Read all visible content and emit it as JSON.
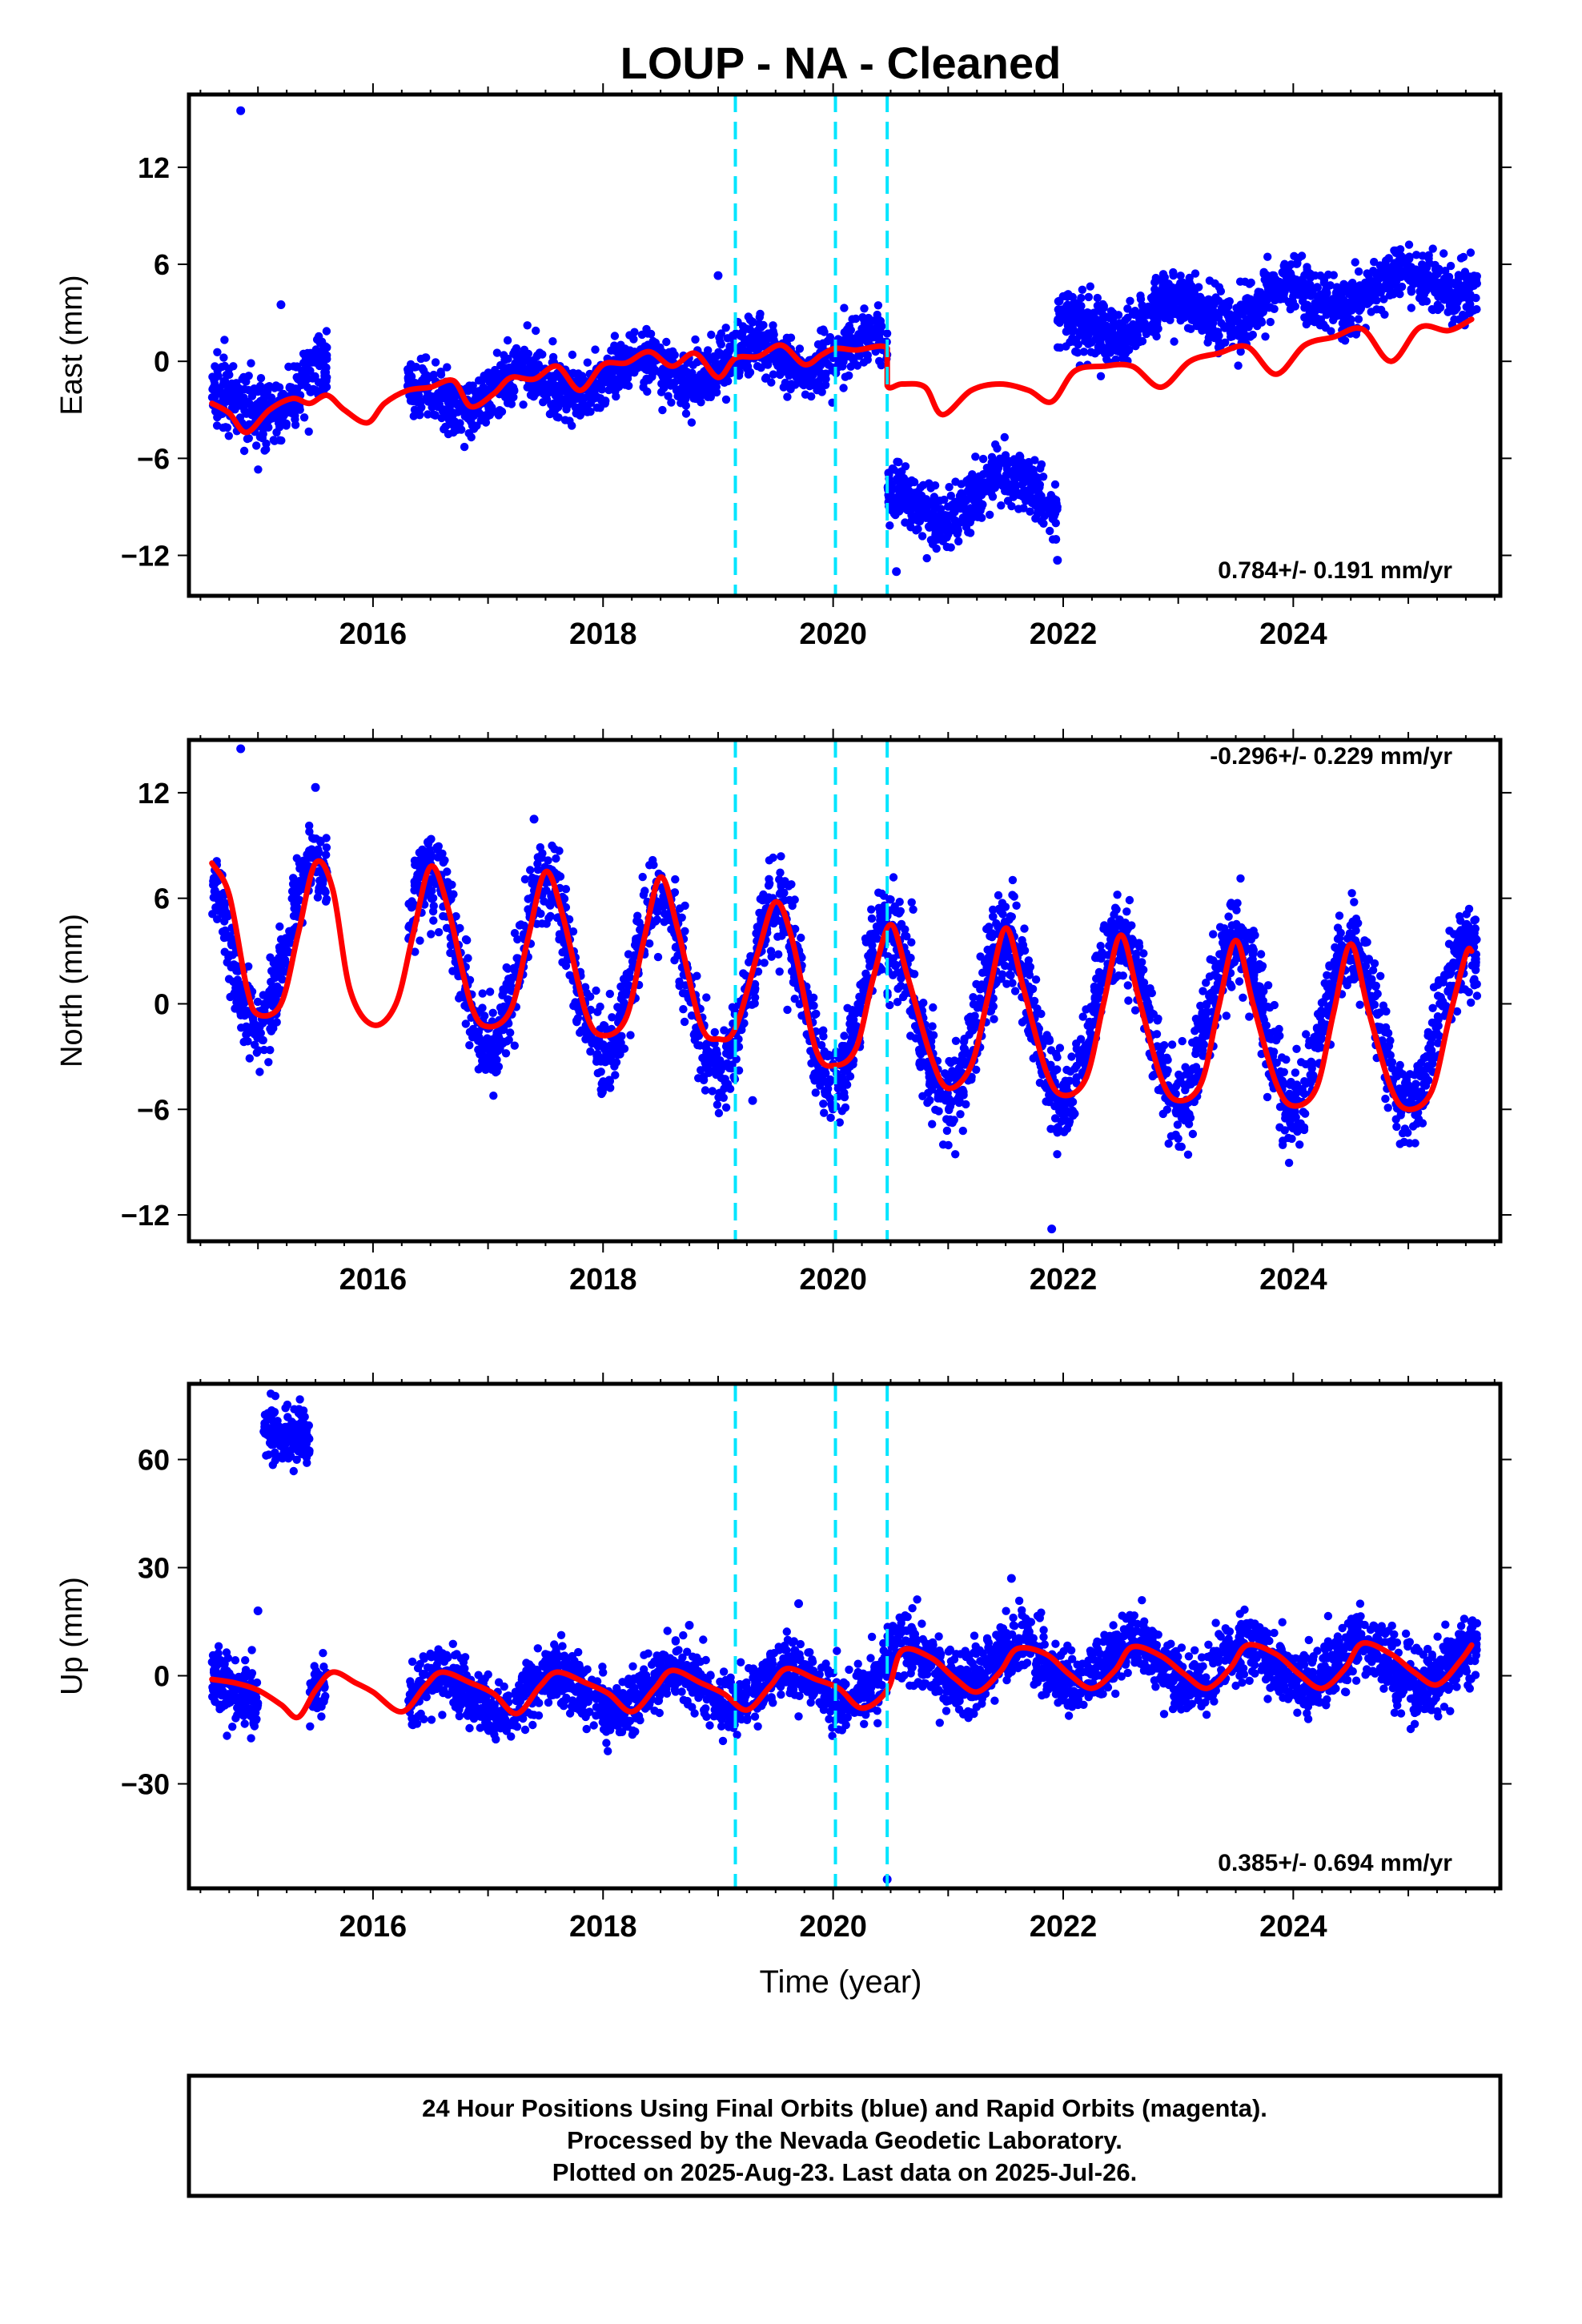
{
  "title": "LOUP  - NA - Cleaned",
  "xlabel": "Time (year)",
  "footer": [
    "24 Hour Positions Using Final Orbits (blue) and Rapid Orbits (magenta).",
    "Processed by the Nevada Geodetic Laboratory.",
    "Plotted on 2025-Aug-23. Last data on 2025-Jul-26."
  ],
  "colors": {
    "data": "#0000ff",
    "model": "#ff0000",
    "events": "#00e5ff",
    "frame": "#000000"
  },
  "chart_data": [
    {
      "type": "scatter",
      "name": "east",
      "ylabel": "East (mm)",
      "rate_text": "0.784+/- 0.191 mm/yr",
      "rate_position": "bottom-right",
      "xlim": [
        2014.4,
        2025.8
      ],
      "ylim": [
        -14.5,
        16.5
      ],
      "yticks": [
        12,
        6,
        0,
        -6,
        -12
      ],
      "xticks": [
        2016,
        2018,
        2020,
        2022,
        2024
      ],
      "event_lines": [
        2019.15,
        2020.02,
        2020.47
      ],
      "series": [
        {
          "name": "Final Orbits",
          "kind": "points",
          "segments": [
            {
              "x": [
                2014.6,
                2015.6
              ],
              "trend": [
                -3.1,
                -1.2
              ],
              "amp": 1.2,
              "noise": 1.0,
              "n": 340
            },
            {
              "x": [
                2016.3,
                2020.47
              ],
              "trend": [
                -2.3,
                0.9
              ],
              "amp": 0.9,
              "noise": 0.9,
              "n": 1300
            },
            {
              "x": [
                2020.47,
                2021.95
              ],
              "trend": [
                -9.2,
                -7.6
              ],
              "amp": 1.2,
              "noise": 0.9,
              "n": 520
            },
            {
              "x": [
                2021.95,
                2025.6
              ],
              "trend": [
                2.0,
                5.2
              ],
              "amp": 0.9,
              "noise": 0.9,
              "n": 1250
            }
          ],
          "outliers": [
            [
              2014.85,
              15.5
            ],
            [
              2015.2,
              3.5
            ],
            [
              2019.0,
              5.3
            ],
            [
              2021.95,
              -12.3
            ],
            [
              2020.55,
              -13.0
            ]
          ]
        },
        {
          "name": "Model",
          "kind": "line",
          "x": [
            2014.6,
            2014.75,
            2014.9,
            2015.1,
            2015.3,
            2015.45,
            2015.6,
            2015.75,
            2015.95,
            2016.1,
            2016.3,
            2016.5,
            2016.7,
            2016.85,
            2017.05,
            2017.2,
            2017.4,
            2017.6,
            2017.8,
            2018.0,
            2018.2,
            2018.4,
            2018.6,
            2018.8,
            2019.0,
            2019.15,
            2019.35,
            2019.55,
            2019.75,
            2019.9,
            2020.02,
            2020.2,
            2020.47,
            2020.47,
            2020.6,
            2020.8,
            2020.95,
            2021.2,
            2021.45,
            2021.7,
            2021.9,
            2022.1,
            2022.35,
            2022.6,
            2022.85,
            2023.1,
            2023.35,
            2023.6,
            2023.85,
            2024.1,
            2024.35,
            2024.6,
            2024.85,
            2025.1,
            2025.35,
            2025.55
          ],
          "y": [
            -2.6,
            -3.2,
            -4.4,
            -3.0,
            -2.3,
            -2.6,
            -2.1,
            -3.0,
            -3.8,
            -2.6,
            -1.8,
            -1.6,
            -1.2,
            -2.8,
            -2.0,
            -1.0,
            -1.1,
            -0.3,
            -1.8,
            -0.2,
            -0.1,
            0.6,
            -0.3,
            0.5,
            -1.0,
            0.2,
            0.3,
            1.0,
            -0.2,
            0.4,
            0.8,
            0.7,
            0.8,
            -1.5,
            -1.4,
            -1.6,
            -3.3,
            -1.8,
            -1.4,
            -1.8,
            -2.5,
            -0.6,
            -0.3,
            -0.3,
            -1.6,
            0.0,
            0.5,
            0.9,
            -0.8,
            1.0,
            1.5,
            2.0,
            0.0,
            2.1,
            1.9,
            2.6
          ]
        }
      ]
    },
    {
      "type": "scatter",
      "name": "north",
      "ylabel": "North (mm)",
      "rate_text": "-0.296+/- 0.229 mm/yr",
      "rate_position": "top-right",
      "xlim": [
        2014.4,
        2025.8
      ],
      "ylim": [
        -13.5,
        15.0
      ],
      "yticks": [
        12,
        6,
        0,
        -6,
        -12
      ],
      "xticks": [
        2016,
        2018,
        2020,
        2022,
        2024
      ],
      "event_lines": [
        2019.15,
        2020.02,
        2020.47
      ],
      "series": [
        {
          "name": "Final Orbits",
          "kind": "points",
          "segments": [
            {
              "x": [
                2014.6,
                2015.6
              ],
              "trend": [
                3.6,
                3.6
              ],
              "amp": 4.6,
              "phase": 2015.5,
              "noise": 1.1,
              "n": 340
            },
            {
              "x": [
                2016.3,
                2020.47
              ],
              "trend": [
                2.8,
                0.0
              ],
              "amp": 4.8,
              "phase": 2016.5,
              "noise": 1.2,
              "n": 1300
            },
            {
              "x": [
                2020.47,
                2021.95
              ],
              "trend": [
                -0.8,
                -1.0
              ],
              "amp": 4.5,
              "phase": 2021.5,
              "noise": 1.4,
              "n": 520
            },
            {
              "x": [
                2021.95,
                2025.6
              ],
              "trend": [
                -0.8,
                -1.3
              ],
              "amp": 4.6,
              "phase": 2022.5,
              "noise": 1.2,
              "n": 1250
            }
          ],
          "outliers": [
            [
              2014.85,
              14.5
            ],
            [
              2015.5,
              12.3
            ],
            [
              2021.9,
              -12.8
            ],
            [
              2019.3,
              -5.5
            ],
            [
              2017.4,
              10.5
            ]
          ]
        },
        {
          "name": "Model",
          "kind": "line",
          "x": [
            2014.6,
            2014.75,
            2014.9,
            2015.0,
            2015.2,
            2015.35,
            2015.5,
            2015.65,
            2015.8,
            2016.0,
            2016.2,
            2016.35,
            2016.5,
            2016.65,
            2016.85,
            2017.0,
            2017.2,
            2017.35,
            2017.5,
            2017.65,
            2017.85,
            2018.0,
            2018.2,
            2018.35,
            2018.5,
            2018.65,
            2018.85,
            2019.0,
            2019.15,
            2019.35,
            2019.5,
            2019.65,
            2019.85,
            2020.02,
            2020.2,
            2020.35,
            2020.5,
            2020.65,
            2020.85,
            2021.0,
            2021.2,
            2021.35,
            2021.5,
            2021.65,
            2021.85,
            2022.0,
            2022.2,
            2022.35,
            2022.5,
            2022.65,
            2022.85,
            2023.0,
            2023.2,
            2023.35,
            2023.5,
            2023.65,
            2023.85,
            2024.0,
            2024.2,
            2024.35,
            2024.5,
            2024.65,
            2024.85,
            2025.0,
            2025.2,
            2025.35,
            2025.5,
            2025.55
          ],
          "y": [
            8.0,
            6.2,
            1.0,
            -0.6,
            0.0,
            4.0,
            8.0,
            6.5,
            0.8,
            -1.2,
            0.0,
            4.0,
            7.8,
            5.5,
            0.0,
            -1.3,
            -0.3,
            3.8,
            7.5,
            5.0,
            -0.5,
            -1.8,
            -0.8,
            3.5,
            7.2,
            4.2,
            -1.2,
            -2.0,
            -1.4,
            3.0,
            5.8,
            3.5,
            -2.6,
            -3.5,
            -2.5,
            1.5,
            4.5,
            1.5,
            -3.0,
            -4.8,
            -3.5,
            0.5,
            4.3,
            1.0,
            -3.8,
            -5.2,
            -4.2,
            0.0,
            3.9,
            0.5,
            -4.2,
            -5.5,
            -4.5,
            -0.2,
            3.6,
            0.0,
            -4.5,
            -5.8,
            -4.8,
            -0.5,
            3.4,
            -0.3,
            -4.8,
            -6.0,
            -5.0,
            -1.0,
            2.8,
            3.0
          ]
        }
      ]
    },
    {
      "type": "scatter",
      "name": "up",
      "ylabel": "Up (mm)",
      "rate_text": "0.385+/- 0.694 mm/yr",
      "rate_position": "bottom-right",
      "xlim": [
        2014.4,
        2025.8
      ],
      "ylim": [
        -59.0,
        81.0
      ],
      "yticks": [
        60,
        30,
        0,
        -30
      ],
      "xticks": [
        2016,
        2018,
        2020,
        2022,
        2024
      ],
      "event_lines": [
        2019.15,
        2020.02,
        2020.47
      ],
      "series": [
        {
          "name": "Final Orbits",
          "kind": "points",
          "segments": [
            {
              "x": [
                2014.6,
                2015.0
              ],
              "trend": [
                -2.5,
                -6.0
              ],
              "amp": 2.0,
              "noise": 4.0,
              "n": 170
            },
            {
              "x": [
                2015.05,
                2015.45
              ],
              "trend": [
                66.0,
                66.0
              ],
              "amp": 0.0,
              "noise": 4.0,
              "n": 150
            },
            {
              "x": [
                2015.45,
                2015.6
              ],
              "trend": [
                -4.0,
                -2.0
              ],
              "amp": 0.0,
              "noise": 4.0,
              "n": 50
            },
            {
              "x": [
                2016.3,
                2020.47
              ],
              "trend": [
                -6.0,
                -2.0
              ],
              "amp": 5.5,
              "phase": 2016.6,
              "noise": 4.2,
              "n": 1300
            },
            {
              "x": [
                2020.47,
                2025.6
              ],
              "trend": [
                3.0,
                3.0
              ],
              "amp": 5.5,
              "phase": 2020.6,
              "noise": 4.5,
              "n": 1750
            }
          ],
          "outliers": [
            [
              2019.7,
              20.0
            ],
            [
              2021.55,
              27.0
            ],
            [
              2020.47,
              -56.5
            ],
            [
              2015.0,
              18.0
            ],
            [
              2018.75,
              14.0
            ]
          ]
        },
        {
          "name": "Model",
          "kind": "line",
          "x": [
            2014.6,
            2014.8,
            2015.0,
            2015.2,
            2015.35,
            2015.5,
            2015.65,
            2015.85,
            2016.0,
            2016.25,
            2016.45,
            2016.6,
            2016.85,
            2017.05,
            2017.25,
            2017.45,
            2017.6,
            2017.85,
            2018.05,
            2018.25,
            2018.45,
            2018.6,
            2018.85,
            2019.05,
            2019.25,
            2019.45,
            2019.6,
            2019.85,
            2020.05,
            2020.25,
            2020.47,
            2020.6,
            2020.85,
            2021.05,
            2021.25,
            2021.45,
            2021.6,
            2021.85,
            2022.05,
            2022.25,
            2022.45,
            2022.6,
            2022.85,
            2023.05,
            2023.25,
            2023.45,
            2023.6,
            2023.85,
            2024.05,
            2024.25,
            2024.45,
            2024.6,
            2024.85,
            2025.05,
            2025.25,
            2025.45,
            2025.55
          ],
          "y": [
            -1.0,
            -2.0,
            -4.0,
            -8.0,
            -11.5,
            -4.0,
            1.0,
            -2.0,
            -4.5,
            -10.0,
            -3.0,
            1.0,
            -2.0,
            -5.0,
            -10.5,
            -3.0,
            1.0,
            -2.0,
            -5.0,
            -10.0,
            -3.5,
            1.5,
            -2.0,
            -5.0,
            -9.5,
            -3.0,
            2.0,
            -1.0,
            -3.5,
            -9.0,
            -4.0,
            7.0,
            5.0,
            -0.5,
            -4.5,
            1.0,
            7.5,
            6.0,
            0.5,
            -3.5,
            1.5,
            8.0,
            5.5,
            0.5,
            -3.5,
            2.0,
            8.5,
            6.0,
            0.5,
            -3.5,
            2.0,
            9.0,
            6.0,
            1.0,
            -2.5,
            4.0,
            8.5
          ]
        }
      ]
    }
  ]
}
